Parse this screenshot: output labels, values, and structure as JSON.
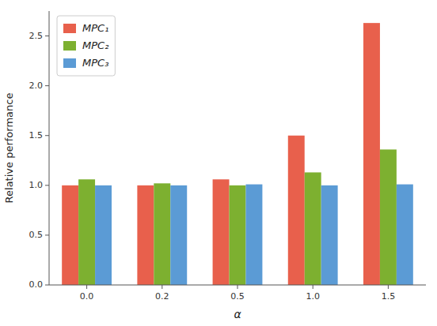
{
  "chart_data": {
    "type": "bar",
    "x_label": "α",
    "y_label": "Relative performance",
    "categories": [
      "0.0",
      "0.2",
      "0.5",
      "1.0",
      "1.5"
    ],
    "series": [
      {
        "name": "MPC₁",
        "color": "#E8604C",
        "values": [
          1.0,
          1.0,
          1.06,
          1.5,
          2.63
        ]
      },
      {
        "name": "MPC₂",
        "color": "#7DB030",
        "values": [
          1.06,
          1.02,
          1.0,
          1.13,
          1.36
        ]
      },
      {
        "name": "MPC₃",
        "color": "#5B9BD5",
        "values": [
          1.0,
          1.0,
          1.01,
          1.0,
          1.01
        ]
      }
    ],
    "ylim": [
      0.0,
      2.75
    ],
    "yticks": [
      {
        "value": 0.0,
        "label": "0.0"
      },
      0.5,
      {
        "value": 1.0,
        "label": "1.0"
      },
      1.5,
      {
        "value": 2.0,
        "label": "2.0"
      },
      2.5
    ],
    "grid": false,
    "legend": "upper left"
  }
}
